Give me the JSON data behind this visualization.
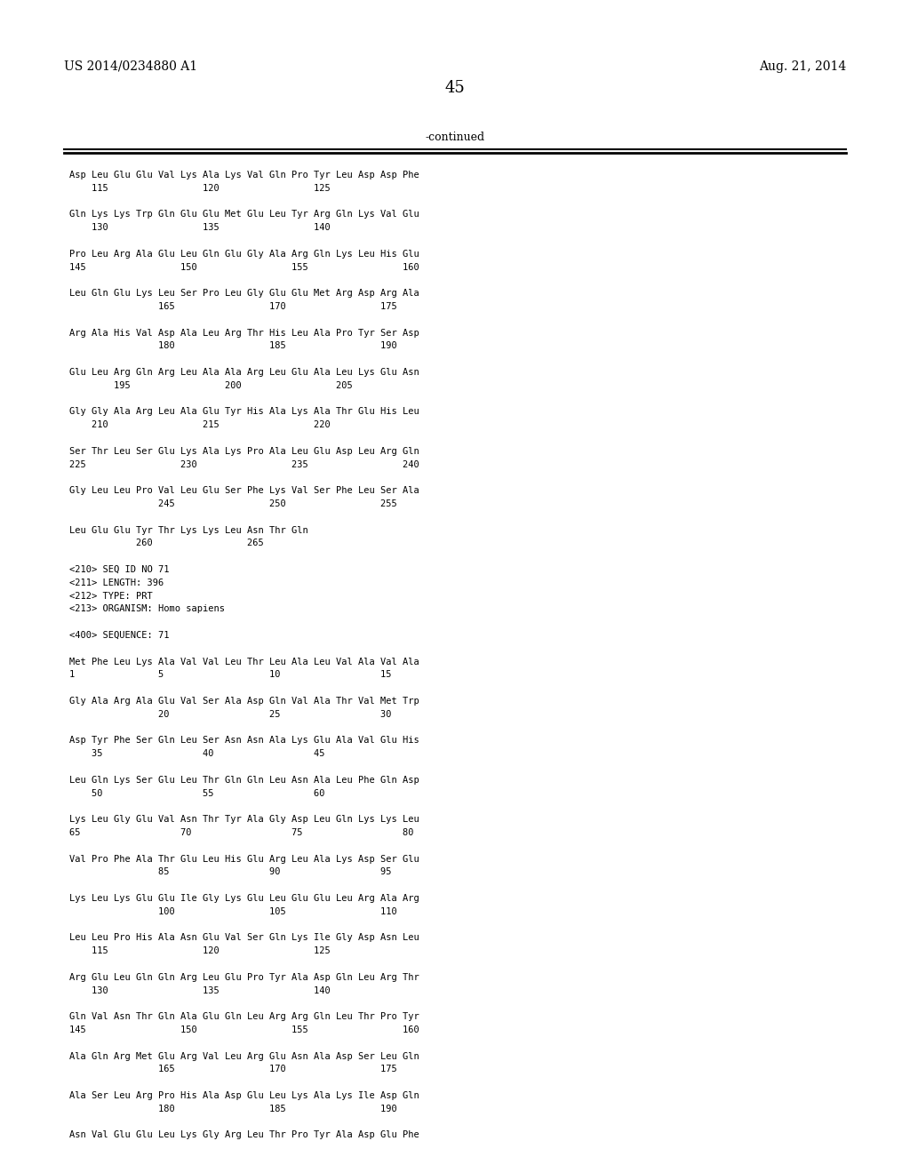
{
  "left_header": "US 2014/0234880 A1",
  "right_header": "Aug. 21, 2014",
  "page_number": "45",
  "continued_text": "-continued",
  "background_color": "#ffffff",
  "text_color": "#000000",
  "mono_font_size": 7.5,
  "header_font_size": 10.5,
  "page_num_font_size": 13,
  "content_lines": [
    "Asp Leu Glu Glu Val Lys Ala Lys Val Gln Pro Tyr Leu Asp Asp Phe",
    "    115                 120                 125",
    "",
    "Gln Lys Lys Trp Gln Glu Glu Met Glu Leu Tyr Arg Gln Lys Val Glu",
    "    130                 135                 140",
    "",
    "Pro Leu Arg Ala Glu Leu Gln Glu Gly Ala Arg Gln Lys Leu His Glu",
    "145                 150                 155                 160",
    "",
    "Leu Gln Glu Lys Leu Ser Pro Leu Gly Glu Glu Met Arg Asp Arg Ala",
    "                165                 170                 175",
    "",
    "Arg Ala His Val Asp Ala Leu Arg Thr His Leu Ala Pro Tyr Ser Asp",
    "                180                 185                 190",
    "",
    "Glu Leu Arg Gln Arg Leu Ala Ala Arg Leu Glu Ala Leu Lys Glu Asn",
    "        195                 200                 205",
    "",
    "Gly Gly Ala Arg Leu Ala Glu Tyr His Ala Lys Ala Thr Glu His Leu",
    "    210                 215                 220",
    "",
    "Ser Thr Leu Ser Glu Lys Ala Lys Pro Ala Leu Glu Asp Leu Arg Gln",
    "225                 230                 235                 240",
    "",
    "Gly Leu Leu Pro Val Leu Glu Ser Phe Lys Val Ser Phe Leu Ser Ala",
    "                245                 250                 255",
    "",
    "Leu Glu Glu Tyr Thr Lys Lys Leu Asn Thr Gln",
    "            260                 265",
    "",
    "<210> SEQ ID NO 71",
    "<211> LENGTH: 396",
    "<212> TYPE: PRT",
    "<213> ORGANISM: Homo sapiens",
    "",
    "<400> SEQUENCE: 71",
    "",
    "Met Phe Leu Lys Ala Val Val Leu Thr Leu Ala Leu Val Ala Val Ala",
    "1               5                   10                  15",
    "",
    "Gly Ala Arg Ala Glu Val Ser Ala Asp Gln Val Ala Thr Val Met Trp",
    "                20                  25                  30",
    "",
    "Asp Tyr Phe Ser Gln Leu Ser Asn Asn Ala Lys Glu Ala Val Glu His",
    "    35                  40                  45",
    "",
    "Leu Gln Lys Ser Glu Leu Thr Gln Gln Leu Asn Ala Leu Phe Gln Asp",
    "    50                  55                  60",
    "",
    "Lys Leu Gly Glu Val Asn Thr Tyr Ala Gly Asp Leu Gln Lys Lys Leu",
    "65                  70                  75                  80",
    "",
    "Val Pro Phe Ala Thr Glu Leu His Glu Arg Leu Ala Lys Asp Ser Glu",
    "                85                  90                  95",
    "",
    "Lys Leu Lys Glu Glu Ile Gly Lys Glu Leu Glu Glu Leu Arg Ala Arg",
    "                100                 105                 110",
    "",
    "Leu Leu Pro His Ala Asn Glu Val Ser Gln Lys Ile Gly Asp Asn Leu",
    "    115                 120                 125",
    "",
    "Arg Glu Leu Gln Gln Arg Leu Glu Pro Tyr Ala Asp Gln Leu Arg Thr",
    "    130                 135                 140",
    "",
    "Gln Val Asn Thr Gln Ala Glu Gln Leu Arg Arg Gln Leu Thr Pro Tyr",
    "145                 150                 155                 160",
    "",
    "Ala Gln Arg Met Glu Arg Val Leu Arg Glu Asn Ala Asp Ser Leu Gln",
    "                165                 170                 175",
    "",
    "Ala Ser Leu Arg Pro His Ala Asp Glu Leu Lys Ala Lys Ile Asp Gln",
    "                180                 185                 190",
    "",
    "Asn Val Glu Glu Leu Lys Gly Arg Leu Thr Pro Tyr Ala Asp Glu Phe"
  ]
}
